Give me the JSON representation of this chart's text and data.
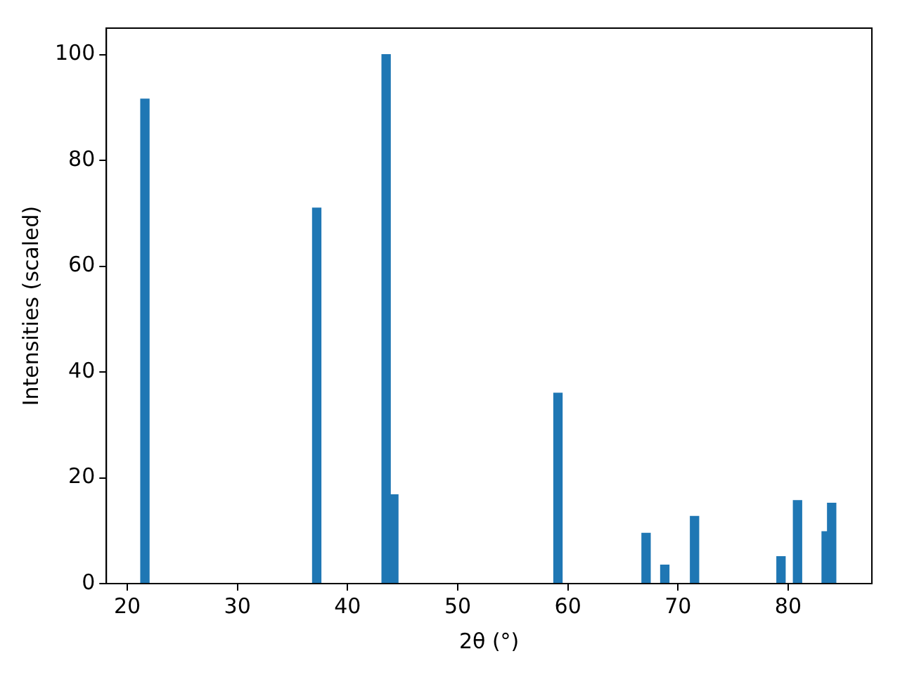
{
  "chart_data": {
    "type": "bar",
    "xlabel": "2θ (°)",
    "ylabel": "Intensities (scaled)",
    "x": [
      21.6,
      37.2,
      43.5,
      44.2,
      59.1,
      67.1,
      68.8,
      71.5,
      79.35,
      80.85,
      83.45,
      83.95
    ],
    "values": [
      91.6,
      71.0,
      100,
      16.8,
      36.0,
      9.5,
      3.5,
      12.7,
      5.1,
      15.7,
      9.8,
      15.2
    ],
    "color": "#1f77b4",
    "xlim": [
      18.1,
      87.6
    ],
    "xticks": [
      20,
      30,
      40,
      50,
      60,
      70,
      80
    ],
    "ylim": [
      0,
      105
    ],
    "yticks": [
      0,
      20,
      40,
      60,
      80,
      100
    ],
    "grid": false,
    "legend": false
  }
}
